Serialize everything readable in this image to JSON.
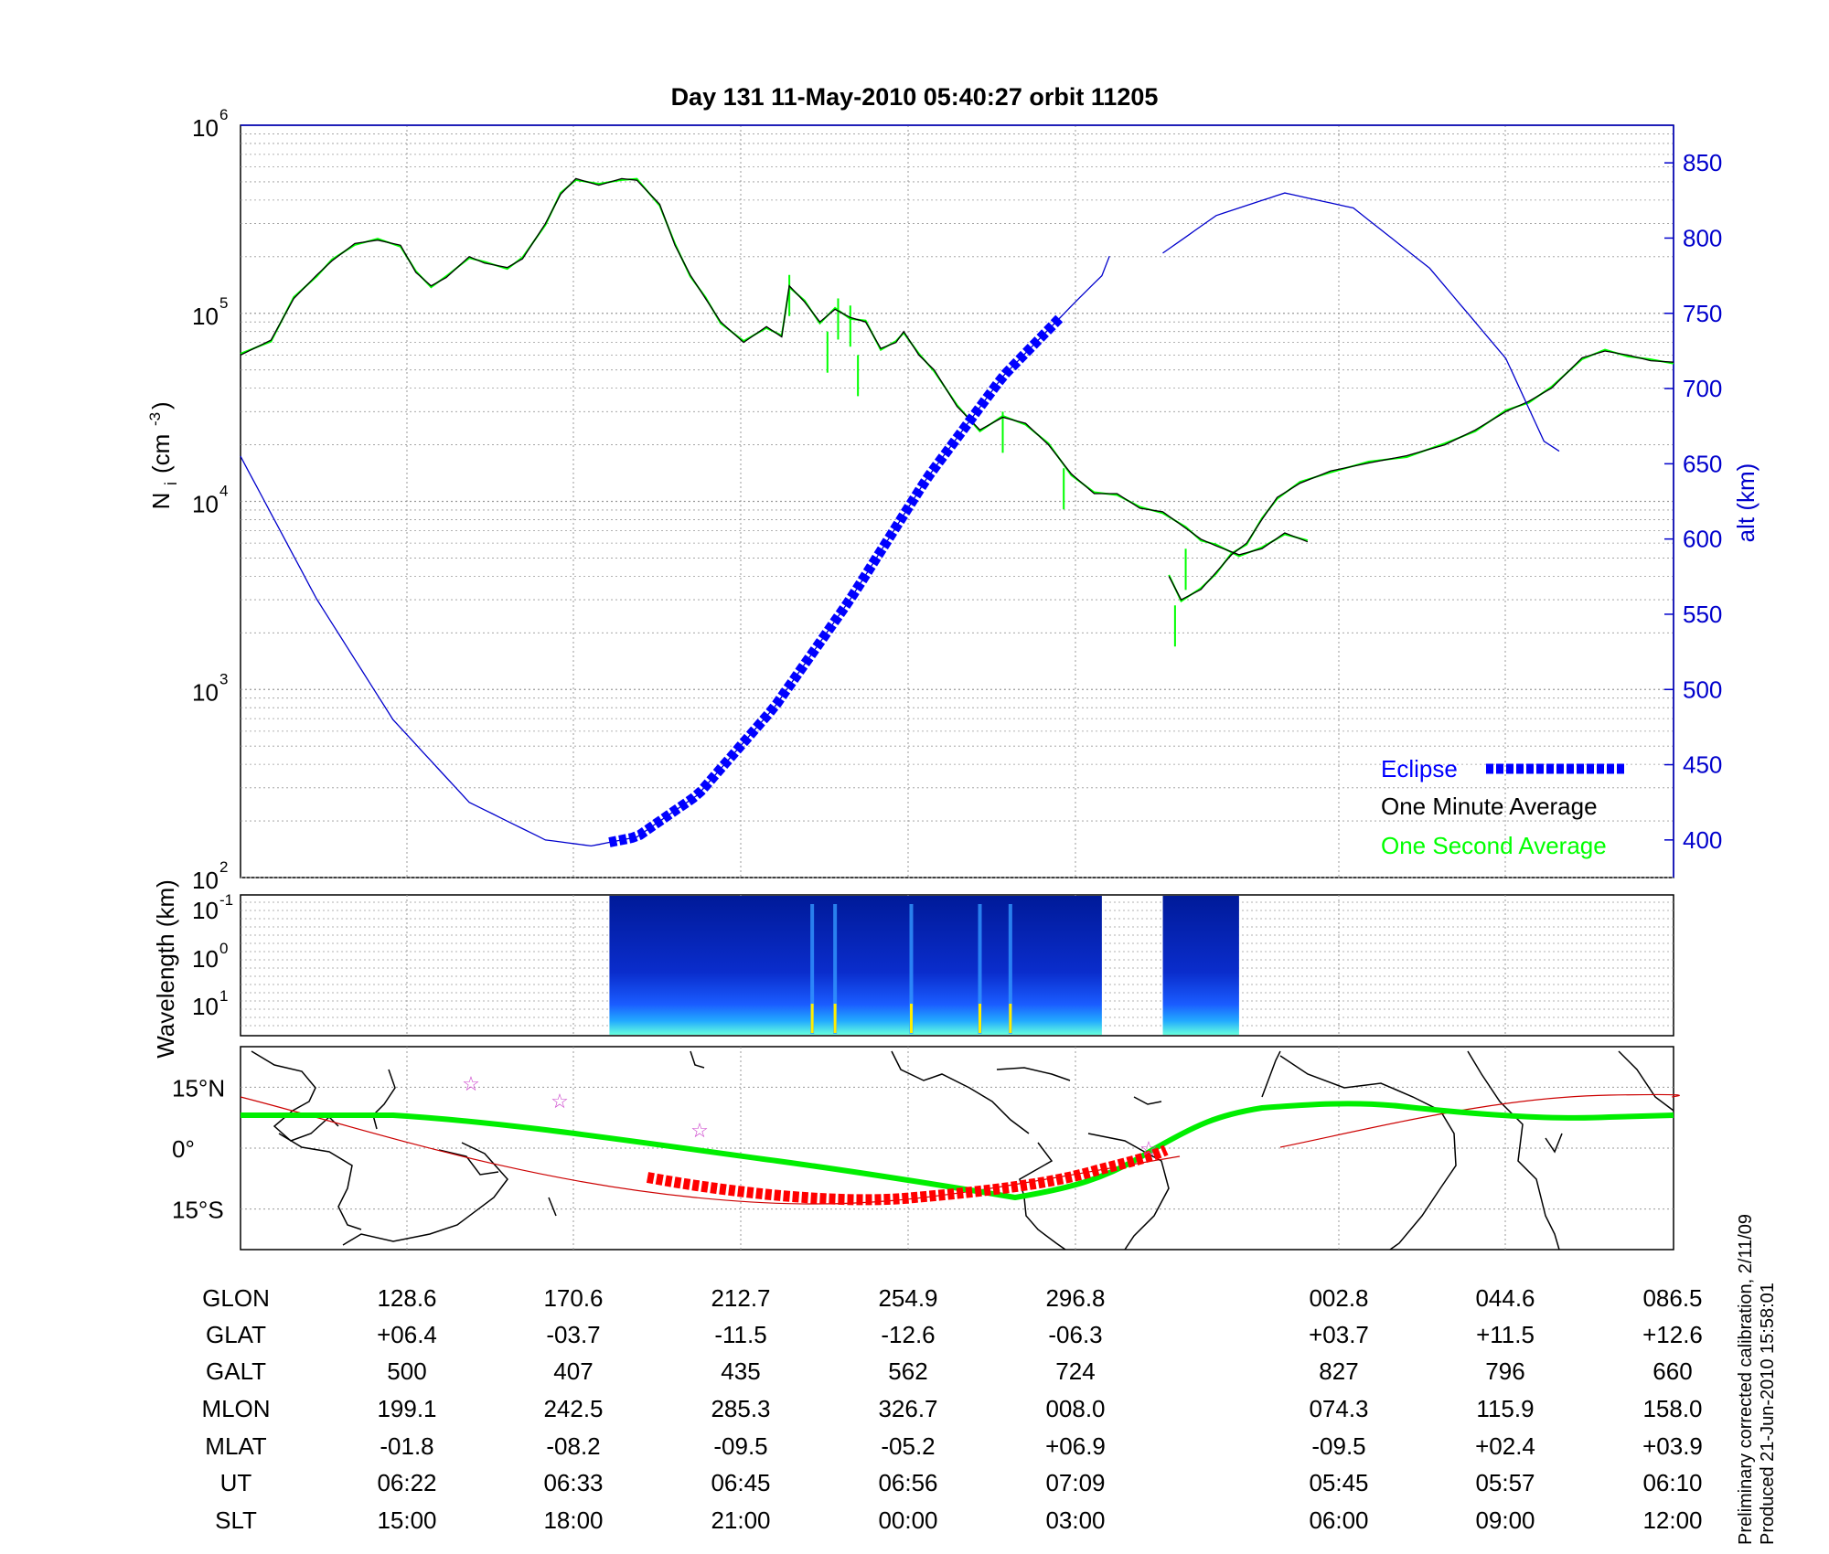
{
  "title": "Day 131  11-May-2010 05:40:27   orbit 11205",
  "footnote": [
    "Preliminary corrected calibration, 2/11/09",
    "Produced 21-Jun-2010 15:58:01"
  ],
  "colors": {
    "ni": "#00ff00",
    "ni_avg": "#000000",
    "alt": "#0000cc",
    "eclipse": "#0000ff",
    "eclipse_map": "#ff0000",
    "map_track": "#00ee00",
    "map_dipeq": "#cc0000",
    "stars": "#cc44cc",
    "grid": "#888888"
  },
  "legend": [
    {
      "label": "Eclipse",
      "color": "#0000ff"
    },
    {
      "label": "One Minute Average",
      "color": "#000000"
    },
    {
      "label": "One Second Average",
      "color": "#00ff00"
    }
  ],
  "table": {
    "row_labels": [
      "GLON",
      "GLAT",
      "GALT",
      "MLON",
      "MLAT",
      "UT",
      "SLT"
    ],
    "columns": [
      [
        "128.6",
        "+06.4",
        "500",
        "199.1",
        "-01.8",
        "06:22",
        "15:00"
      ],
      [
        "170.6",
        "-03.7",
        "407",
        "242.5",
        "-08.2",
        "06:33",
        "18:00"
      ],
      [
        "212.7",
        "-11.5",
        "435",
        "285.3",
        "-09.5",
        "06:45",
        "21:00"
      ],
      [
        "254.9",
        "-12.6",
        "562",
        "326.7",
        "-05.2",
        "06:56",
        "00:00"
      ],
      [
        "296.8",
        "-06.3",
        "724",
        "008.0",
        "+06.9",
        "07:09",
        "03:00"
      ],
      [
        "002.8",
        "+03.7",
        "827",
        "074.3",
        "-09.5",
        "05:45",
        "06:00"
      ],
      [
        "044.6",
        "+11.5",
        "796",
        "115.9",
        "+02.4",
        "05:57",
        "09:00"
      ],
      [
        "086.5",
        "+12.6",
        "660",
        "158.0",
        "+03.9",
        "06:10",
        "12:00"
      ]
    ]
  },
  "chart_data": [
    {
      "type": "line",
      "panel": "density-altitude",
      "ylabel": "N_i (cm^-3)",
      "yscale": "log",
      "ylim": [
        100,
        1000000
      ],
      "y_ticks": [
        "10^2",
        "10^3",
        "10^4",
        "10^5",
        "10^6"
      ],
      "y2label": "alt (km)",
      "y2lim": [
        375,
        875
      ],
      "y2_ticks": [
        400,
        450,
        500,
        550,
        600,
        650,
        700,
        750,
        800,
        850
      ],
      "x_data_range": [
        0,
        8.55
      ],
      "x_gap": [
        5.65,
        6.25
      ],
      "series": [
        {
          "name": "One Minute Average",
          "unit": "cm^-3",
          "segments": [
            [
              [
                0,
                60000
              ],
              [
                0.2,
                72000
              ],
              [
                0.35,
                120000
              ],
              [
                0.5,
                160000
              ],
              [
                0.6,
                190000
              ],
              [
                0.75,
                235000
              ],
              [
                0.9,
                245000
              ],
              [
                1.05,
                230000
              ],
              [
                1.15,
                165000
              ],
              [
                1.25,
                140000
              ],
              [
                1.35,
                155000
              ],
              [
                1.5,
                200000
              ],
              [
                1.6,
                185000
              ],
              [
                1.75,
                175000
              ],
              [
                1.85,
                195000
              ],
              [
                2.0,
                300000
              ],
              [
                2.1,
                430000
              ],
              [
                2.2,
                520000
              ],
              [
                2.35,
                480000
              ],
              [
                2.5,
                520000
              ],
              [
                2.6,
                510000
              ],
              [
                2.75,
                380000
              ],
              [
                2.85,
                230000
              ],
              [
                2.95,
                160000
              ],
              [
                3.05,
                120000
              ],
              [
                3.15,
                90000
              ],
              [
                3.3,
                70000
              ],
              [
                3.45,
                85000
              ],
              [
                3.55,
                75000
              ],
              [
                3.6,
                140000
              ],
              [
                3.7,
                115000
              ],
              [
                3.8,
                90000
              ],
              [
                3.9,
                105000
              ],
              [
                4.0,
                95000
              ],
              [
                4.1,
                90000
              ],
              [
                4.2,
                65000
              ],
              [
                4.3,
                70000
              ],
              [
                4.35,
                80000
              ],
              [
                4.45,
                60000
              ],
              [
                4.55,
                50000
              ],
              [
                4.7,
                32000
              ],
              [
                4.85,
                24000
              ],
              [
                5.0,
                28000
              ],
              [
                5.15,
                26000
              ],
              [
                5.3,
                20000
              ],
              [
                5.45,
                14000
              ],
              [
                5.6,
                11000
              ],
              [
                5.75,
                11000
              ],
              [
                5.9,
                9200
              ],
              [
                6.05,
                8800
              ],
              [
                6.2,
                7200
              ],
              [
                6.3,
                6300
              ],
              [
                6.4,
                5800
              ],
              [
                6.55,
                5200
              ],
              [
                6.7,
                5600
              ],
              [
                6.85,
                6800
              ],
              [
                7.0,
                6100
              ]
            ],
            [
              [
                6.09,
                4000
              ],
              [
                6.17,
                3000
              ],
              [
                6.3,
                3400
              ],
              [
                6.4,
                4200
              ],
              [
                6.5,
                5200
              ],
              [
                6.6,
                6000
              ],
              [
                6.7,
                8000
              ],
              [
                6.8,
                10500
              ],
              [
                6.95,
                12500
              ],
              [
                7.15,
                14500
              ],
              [
                7.4,
                16000
              ],
              [
                7.65,
                17500
              ],
              [
                7.9,
                20000
              ],
              [
                8.1,
                24000
              ],
              [
                8.3,
                30000
              ],
              [
                8.45,
                34000
              ],
              [
                8.6,
                40000
              ],
              [
                8.8,
                58000
              ],
              [
                8.95,
                63000
              ],
              [
                9.1,
                60000
              ],
              [
                9.25,
                56000
              ],
              [
                9.4,
                55000
              ]
            ]
          ]
        },
        {
          "name": "One Second Average",
          "unit": "cm^-3",
          "note": "follows one-minute average with spikes",
          "spikes": [
            [
              3.6,
              160000
            ],
            [
              3.85,
              80000
            ],
            [
              3.92,
              120000
            ],
            [
              4.0,
              110000
            ],
            [
              4.05,
              60000
            ],
            [
              5.0,
              30000
            ],
            [
              5.4,
              15000
            ],
            [
              6.2,
              5600
            ],
            [
              6.13,
              2800
            ]
          ]
        },
        {
          "name": "alt",
          "axis": "right",
          "unit": "km",
          "segments": [
            [
              [
                0,
                655
              ],
              [
                0.5,
                560
              ],
              [
                1.0,
                480
              ],
              [
                1.5,
                425
              ],
              [
                2.0,
                400
              ],
              [
                2.3,
                396
              ],
              [
                2.6,
                402
              ],
              [
                3.0,
                430
              ],
              [
                3.5,
                488
              ],
              [
                4.0,
                560
              ],
              [
                4.5,
                640
              ],
              [
                5.0,
                708
              ],
              [
                5.5,
                760
              ],
              [
                5.65,
                775
              ],
              [
                5.7,
                788
              ]
            ],
            [
              [
                6.05,
                790
              ],
              [
                6.4,
                815
              ],
              [
                6.85,
                830
              ],
              [
                7.3,
                820
              ],
              [
                7.8,
                780
              ],
              [
                8.3,
                720
              ],
              [
                8.55,
                665
              ],
              [
                8.7,
                655
              ]
            ]
          ]
        },
        {
          "name": "Eclipse",
          "axis": "right",
          "unit": "km",
          "x_range": [
            2.42,
            5.4
          ]
        }
      ]
    },
    {
      "type": "heatmap",
      "panel": "spectrogram",
      "ylabel": "Wavelength (km)",
      "y_ticks": [
        "10^-1",
        "10^0",
        "10^1"
      ],
      "data_blocks": [
        [
          2.42,
          5.65
        ],
        [
          6.05,
          6.55
        ]
      ],
      "bright_lines": [
        3.75,
        3.9,
        4.4,
        4.85,
        5.05
      ]
    },
    {
      "type": "map",
      "panel": "orbit-map",
      "lat_ticks": [
        "15°N",
        "0°",
        "15°S"
      ],
      "lat_range": [
        -25,
        25
      ]
    }
  ]
}
